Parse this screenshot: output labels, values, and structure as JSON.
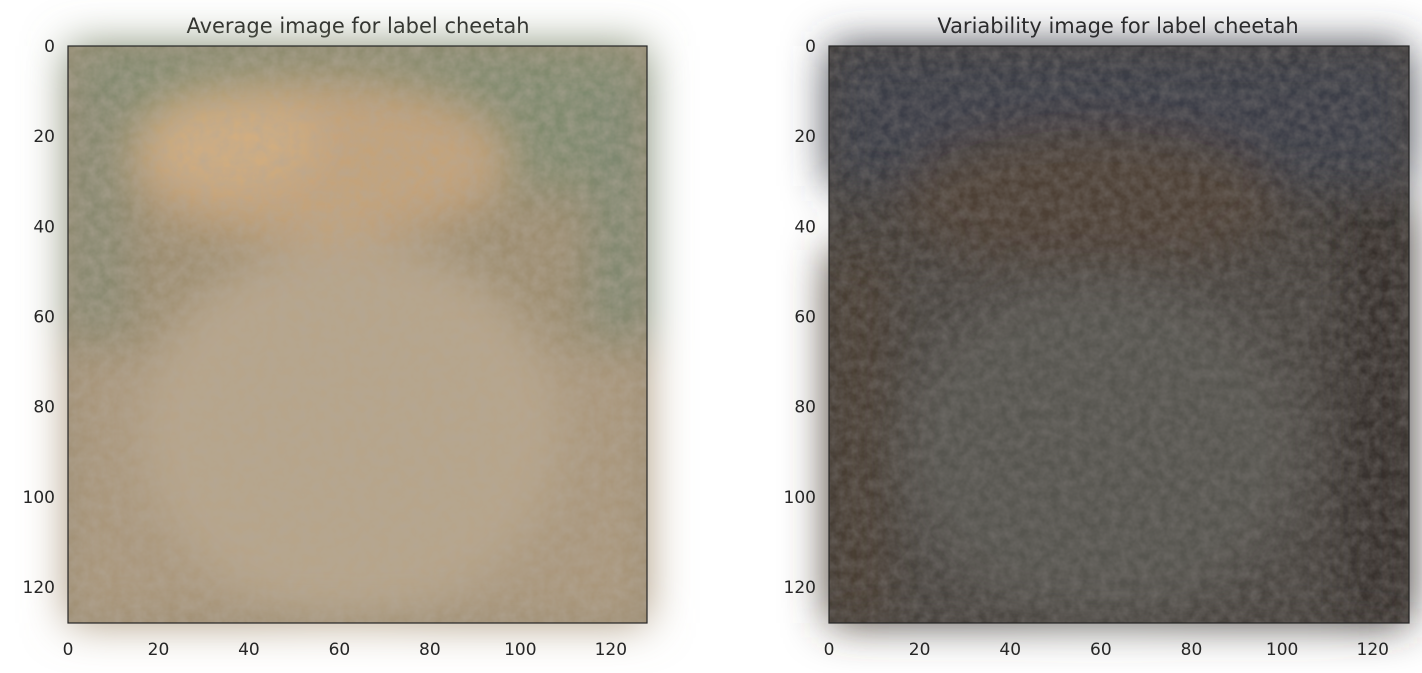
{
  "figure": {
    "background": "#ffffff",
    "text_color": "#262626",
    "axes_edge_color": "#262626"
  },
  "chart_data": [
    {
      "type": "heatmap",
      "title": "Average image for label cheetah",
      "xlabel": "",
      "ylabel": "",
      "xlim": [
        0,
        128
      ],
      "ylim": [
        128,
        0
      ],
      "xticks": [
        0,
        20,
        40,
        60,
        80,
        100,
        120
      ],
      "yticks": [
        0,
        20,
        40,
        60,
        80,
        100,
        120
      ],
      "grid": false,
      "image_size": [
        128,
        128
      ],
      "dominant_colors": [
        "#7f8a6e",
        "#c4a37a",
        "#a89579",
        "#8f7d66",
        "#b7a58a"
      ]
    },
    {
      "type": "heatmap",
      "title": "Variability image for label cheetah",
      "xlabel": "",
      "ylabel": "",
      "xlim": [
        0,
        128
      ],
      "ylim": [
        128,
        0
      ],
      "xticks": [
        0,
        20,
        40,
        60,
        80,
        100,
        120
      ],
      "yticks": [
        0,
        20,
        40,
        60,
        80,
        100,
        120
      ],
      "grid": false,
      "image_size": [
        128,
        128
      ],
      "dominant_colors": [
        "#3a3d47",
        "#4d4134",
        "#4f4e4a",
        "#342e2c",
        "#5a5650"
      ]
    }
  ]
}
